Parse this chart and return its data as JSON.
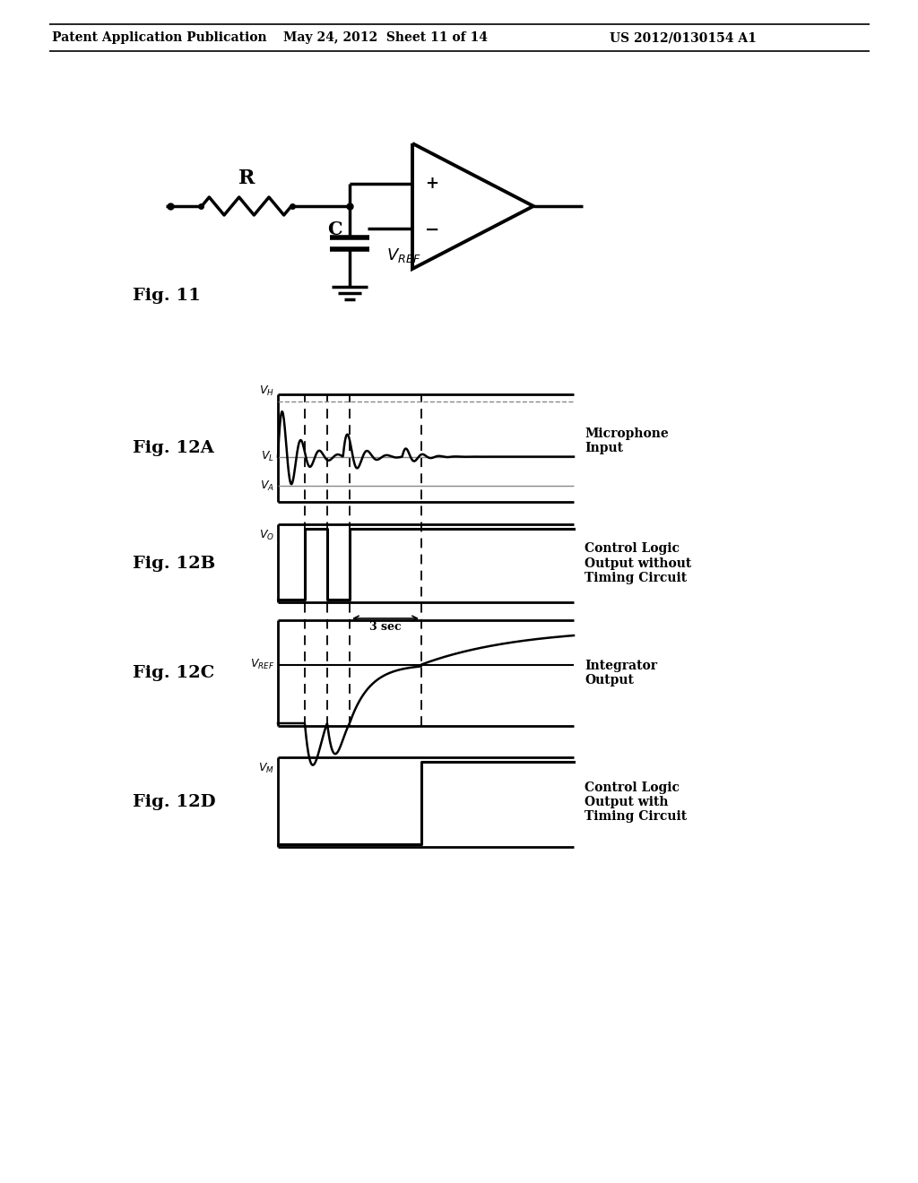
{
  "header_left": "Patent Application Publication",
  "header_mid": "May 24, 2012  Sheet 11 of 14",
  "header_right": "US 2012/0130154 A1",
  "fig11_label": "Fig. 11",
  "fig12a_label": "Fig. 12A",
  "fig12b_label": "Fig. 12B",
  "fig12c_label": "Fig. 12C",
  "fig12d_label": "Fig. 12D",
  "label_12a": "Microphone\nInput",
  "label_12b": "Control Logic\nOutput without\nTiming Circuit",
  "label_12c": "Integrator\nOutput",
  "label_12d": "Control Logic\nOutput with\nTiming Circuit",
  "annotation_3sec": "3 sec",
  "bg_color": "#ffffff",
  "line_color": "#000000"
}
